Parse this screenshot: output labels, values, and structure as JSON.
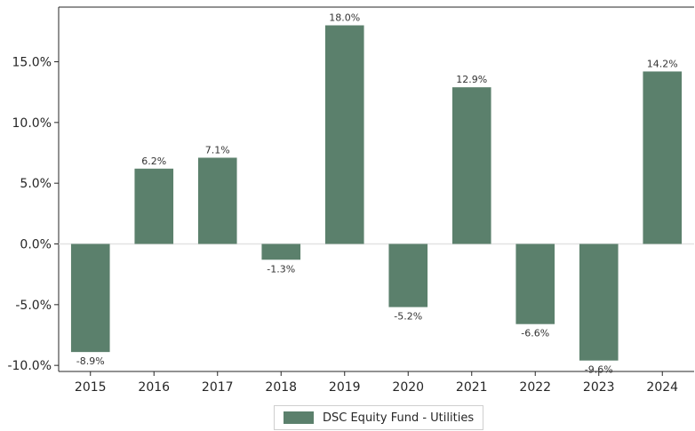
{
  "chart_data": {
    "type": "bar",
    "categories": [
      "2015",
      "2016",
      "2017",
      "2018",
      "2019",
      "2020",
      "2021",
      "2022",
      "2023",
      "2024"
    ],
    "series": [
      {
        "name": "DSC Equity Fund - Utilities",
        "values": [
          -8.9,
          6.2,
          7.1,
          -1.3,
          18.0,
          -5.2,
          12.9,
          -6.6,
          -9.6,
          14.2
        ],
        "labels": [
          "-8.9%",
          "6.2%",
          "7.1%",
          "-1.3%",
          "18.0%",
          "-5.2%",
          "12.9%",
          "-6.6%",
          "-9.6%",
          "14.2%"
        ]
      }
    ],
    "y_ticks": [
      15,
      10,
      5,
      0,
      -5,
      -10
    ],
    "y_tick_labels": [
      "15.0%",
      "10.0%",
      "5.0%",
      "0.0%",
      "-5.0%",
      "-10.0%"
    ],
    "ylim": [
      -10.5,
      19.5
    ],
    "title": "",
    "xlabel": "",
    "ylabel": "",
    "grid": false,
    "zero_line": true,
    "legend_position": "bottom-center",
    "bar_color": "#5b806c"
  }
}
